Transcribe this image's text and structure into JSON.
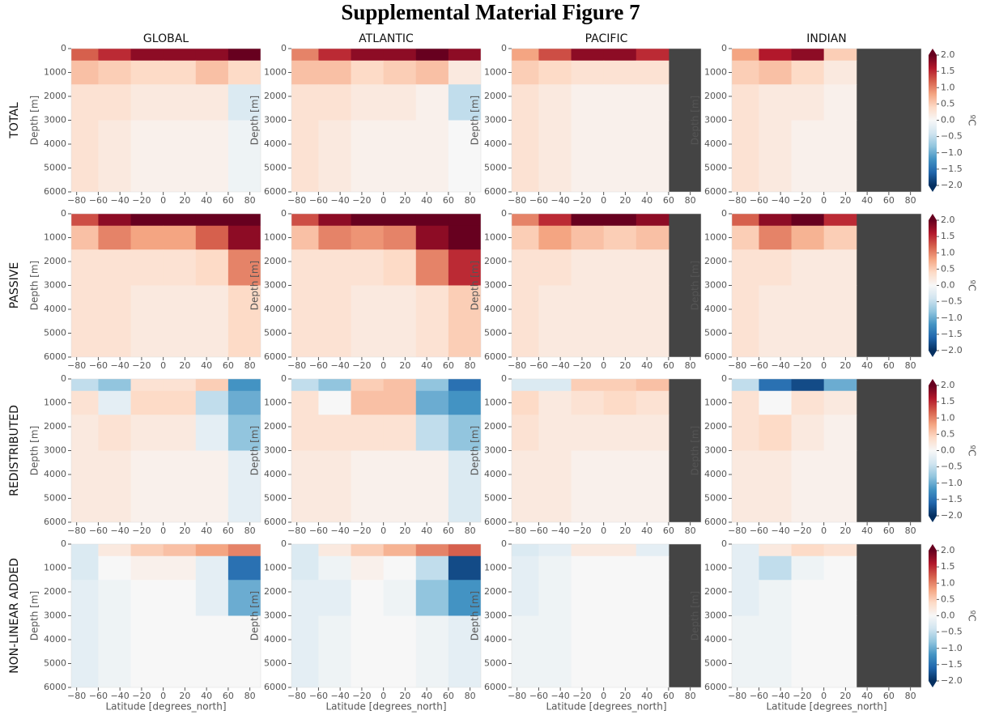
{
  "chart_data": {
    "type": "heatmap",
    "title": "Supplemental Material Figure 7",
    "columns": [
      "GLOBAL",
      "ATLANTIC",
      "PACIFIC",
      "INDIAN"
    ],
    "rows": [
      "TOTAL",
      "PASSIVE",
      "REDISTRIBUTED",
      "NON-LINEAR ADDED"
    ],
    "xlabel": "Latitude [degrees_north]",
    "ylabel": "Depth [m]",
    "xlim": [
      -85,
      90
    ],
    "ylim": [
      0,
      6000
    ],
    "y_inverted": true,
    "xticks": [
      {
        "value": -80,
        "label": "−80"
      },
      {
        "value": -60,
        "label": "−60"
      },
      {
        "value": -40,
        "label": "−40"
      },
      {
        "value": -20,
        "label": "−20"
      },
      0,
      20,
      40,
      60,
      80
    ],
    "yticks": [
      0,
      1000,
      2000,
      3000,
      4000,
      5000,
      6000
    ],
    "x_bins": [
      -90,
      -60,
      -30,
      0,
      30,
      60,
      90
    ],
    "y_bins": [
      0,
      500,
      1500,
      3000,
      6000
    ],
    "land_color": "#444444",
    "colorbar": {
      "label": "ºC",
      "lim": [
        -2,
        2
      ],
      "ticks": [
        {
          "value": -2,
          "label": "−2.0"
        },
        {
          "value": -1.5,
          "label": "−1.5"
        },
        {
          "value": -1,
          "label": "−1.0"
        },
        {
          "value": -0.5,
          "label": "−0.5"
        },
        {
          "value": 0,
          "label": "0.0"
        },
        0.5,
        {
          "value": 1,
          "label": "1.0"
        },
        1.5,
        {
          "value": 2,
          "label": "2.0"
        }
      ],
      "colors": [
        "#053061",
        "#2166ac",
        "#4393c3",
        "#92c5de",
        "#d1e5f0",
        "#f7f7f7",
        "#fddbc7",
        "#f4a582",
        "#d6604d",
        "#b2182b",
        "#67001f"
      ]
    },
    "panels": [
      [
        {
          "values": [
            [
              1.2,
              1.5,
              1.8,
              1.8,
              1.8,
              2.0
            ],
            [
              0.6,
              0.5,
              0.4,
              0.4,
              0.6,
              0.4
            ],
            [
              0.3,
              0.3,
              0.2,
              0.2,
              0.2,
              -0.3
            ],
            [
              0.3,
              0.2,
              0.1,
              0.1,
              0.1,
              -0.1
            ]
          ]
        },
        {
          "values": [
            [
              1.0,
              1.5,
              1.8,
              1.8,
              2.0,
              1.8
            ],
            [
              0.6,
              0.6,
              0.4,
              0.5,
              0.6,
              0.2
            ],
            [
              0.3,
              0.3,
              0.2,
              0.2,
              0.1,
              -0.5
            ],
            [
              0.3,
              0.2,
              0.1,
              0.1,
              0.1,
              0.0
            ]
          ]
        },
        {
          "values": [
            [
              0.8,
              1.3,
              1.8,
              1.8,
              1.5,
              null
            ],
            [
              0.5,
              0.4,
              0.3,
              0.3,
              0.3,
              null
            ],
            [
              0.3,
              0.2,
              0.1,
              0.1,
              0.1,
              null
            ],
            [
              0.3,
              0.2,
              0.1,
              0.1,
              0.1,
              null
            ]
          ]
        },
        {
          "values": [
            [
              0.8,
              1.6,
              1.8,
              0.5,
              null,
              null
            ],
            [
              0.5,
              0.6,
              0.4,
              0.2,
              null,
              null
            ],
            [
              0.3,
              0.2,
              0.2,
              0.1,
              null,
              null
            ],
            [
              0.3,
              0.2,
              0.1,
              0.1,
              null,
              null
            ]
          ]
        }
      ],
      [
        {
          "values": [
            [
              1.3,
              1.8,
              2.0,
              2.0,
              2.0,
              2.0
            ],
            [
              0.6,
              1.0,
              0.8,
              0.8,
              1.2,
              1.8
            ],
            [
              0.3,
              0.3,
              0.3,
              0.3,
              0.4,
              1.0
            ],
            [
              0.3,
              0.3,
              0.2,
              0.2,
              0.2,
              0.4
            ]
          ]
        },
        {
          "values": [
            [
              1.3,
              1.8,
              2.0,
              2.0,
              2.0,
              2.0
            ],
            [
              0.6,
              1.0,
              0.9,
              1.0,
              1.8,
              2.0
            ],
            [
              0.3,
              0.3,
              0.3,
              0.4,
              1.0,
              1.5
            ],
            [
              0.3,
              0.3,
              0.2,
              0.2,
              0.3,
              0.5
            ]
          ]
        },
        {
          "values": [
            [
              1.0,
              1.5,
              2.0,
              2.0,
              1.8,
              null
            ],
            [
              0.5,
              0.8,
              0.6,
              0.5,
              0.6,
              null
            ],
            [
              0.3,
              0.3,
              0.2,
              0.2,
              0.2,
              null
            ],
            [
              0.3,
              0.2,
              0.2,
              0.2,
              0.2,
              null
            ]
          ]
        },
        {
          "values": [
            [
              1.2,
              1.8,
              2.0,
              1.5,
              null,
              null
            ],
            [
              0.5,
              1.0,
              0.7,
              0.5,
              null,
              null
            ],
            [
              0.3,
              0.3,
              0.2,
              0.2,
              null,
              null
            ],
            [
              0.3,
              0.2,
              0.2,
              0.2,
              null,
              null
            ]
          ]
        }
      ],
      [
        {
          "values": [
            [
              -0.5,
              -0.8,
              0.3,
              0.3,
              0.5,
              -1.2
            ],
            [
              0.3,
              -0.2,
              0.4,
              0.4,
              -0.5,
              -1.0
            ],
            [
              0.2,
              0.3,
              0.2,
              0.2,
              -0.2,
              -0.8
            ],
            [
              0.2,
              0.2,
              0.1,
              0.1,
              0.1,
              -0.2
            ]
          ]
        },
        {
          "values": [
            [
              -0.5,
              -0.8,
              0.5,
              0.6,
              -0.8,
              -1.5
            ],
            [
              0.3,
              0.0,
              0.6,
              0.6,
              -1.0,
              -1.2
            ],
            [
              0.3,
              0.3,
              0.3,
              0.3,
              -0.5,
              -0.8
            ],
            [
              0.2,
              0.2,
              0.1,
              0.1,
              0.1,
              -0.3
            ]
          ]
        },
        {
          "values": [
            [
              -0.3,
              -0.3,
              0.5,
              0.5,
              0.6,
              null
            ],
            [
              0.4,
              0.2,
              0.3,
              0.4,
              0.3,
              null
            ],
            [
              0.3,
              0.2,
              0.2,
              0.2,
              0.2,
              null
            ],
            [
              0.2,
              0.2,
              0.1,
              0.1,
              0.1,
              null
            ]
          ]
        },
        {
          "values": [
            [
              -0.5,
              -1.5,
              -1.8,
              -1.0,
              null,
              null
            ],
            [
              0.3,
              0.0,
              0.3,
              0.2,
              null,
              null
            ],
            [
              0.3,
              0.4,
              0.2,
              0.1,
              null,
              null
            ],
            [
              0.2,
              0.2,
              0.1,
              0.1,
              null,
              null
            ]
          ]
        }
      ],
      [
        {
          "values": [
            [
              -0.3,
              0.2,
              0.5,
              0.6,
              0.8,
              1.0
            ],
            [
              -0.3,
              0.0,
              0.1,
              0.1,
              -0.2,
              -1.5
            ],
            [
              -0.2,
              -0.1,
              0.0,
              0.0,
              -0.2,
              -1.0
            ],
            [
              -0.2,
              -0.1,
              0.0,
              0.0,
              0.0,
              0.0
            ]
          ]
        },
        {
          "values": [
            [
              -0.3,
              0.2,
              0.5,
              0.7,
              1.0,
              1.2
            ],
            [
              -0.3,
              -0.1,
              0.1,
              0.0,
              -0.5,
              -1.8
            ],
            [
              -0.2,
              -0.2,
              0.0,
              -0.1,
              -0.8,
              -1.2
            ],
            [
              -0.2,
              -0.1,
              0.0,
              0.0,
              -0.1,
              -0.2
            ]
          ]
        },
        {
          "values": [
            [
              -0.3,
              -0.2,
              0.2,
              0.2,
              -0.2,
              null
            ],
            [
              -0.2,
              -0.1,
              0.0,
              0.0,
              0.0,
              null
            ],
            [
              -0.2,
              -0.1,
              0.0,
              0.0,
              0.0,
              null
            ],
            [
              -0.1,
              -0.1,
              0.0,
              0.0,
              0.0,
              null
            ]
          ]
        },
        {
          "values": [
            [
              -0.2,
              0.2,
              0.4,
              0.3,
              null,
              null
            ],
            [
              -0.2,
              -0.5,
              -0.1,
              0.0,
              null,
              null
            ],
            [
              -0.2,
              -0.1,
              0.0,
              0.0,
              null,
              null
            ],
            [
              -0.1,
              -0.1,
              0.0,
              0.0,
              null,
              null
            ]
          ]
        }
      ]
    ]
  }
}
